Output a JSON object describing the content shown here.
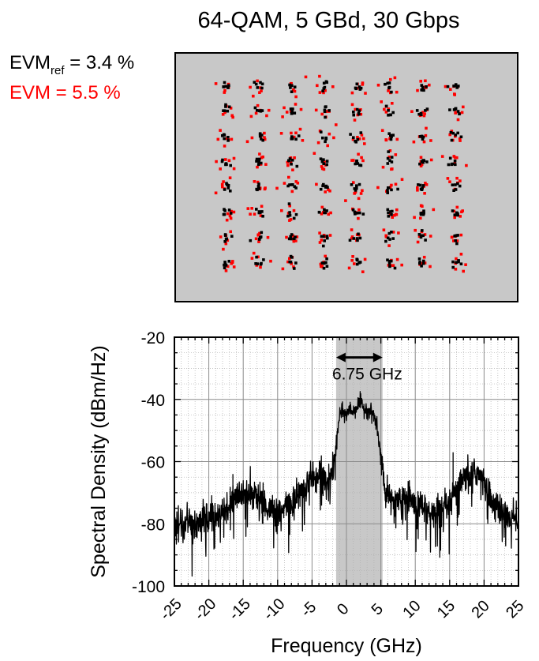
{
  "header": {
    "title": "64-QAM, 5 GBd, 30 Gbps"
  },
  "evm": {
    "ref_label": "EVM",
    "ref_sub": "ref",
    "ref_value": " = 3.4 %",
    "measured": "EVM = 5.5 %",
    "measured_color": "#ff0000",
    "ref_color": "#000000"
  },
  "chart_data": [
    {
      "type": "scatter",
      "title": "64-QAM, 5 GBd, 30 Gbps",
      "grid": false,
      "background": "#c8c8c8",
      "levels": [
        -7,
        -5,
        -3,
        -1,
        1,
        3,
        5,
        7
      ],
      "series": [
        {
          "name": "EVM = 5.5 %",
          "color": "#ff0000",
          "evm_percent": 5.5
        },
        {
          "name": "EVM_ref = 3.4 %",
          "color": "#000000",
          "evm_percent": 3.4
        }
      ]
    },
    {
      "type": "line",
      "xlabel": "Frequency (GHz)",
      "ylabel": "Spectral Density (dBm/Hz)",
      "xlim": [
        -25,
        25
      ],
      "ylim": [
        -100,
        -20
      ],
      "xticks": [
        -25,
        -20,
        -15,
        -10,
        -5,
        0,
        5,
        10,
        15,
        20,
        25
      ],
      "yticks": [
        -100,
        -80,
        -60,
        -40,
        -20
      ],
      "grid": true,
      "band": {
        "x0": -1.5,
        "x1": 5.25,
        "color": "#c8c8c8"
      },
      "annotation": {
        "text": "6.75 GHz",
        "x0": -1.5,
        "x1": 5.25,
        "y": -26.5
      },
      "series": [
        {
          "name": "spectrum",
          "color": "#000000",
          "x": [
            -25,
            -24,
            -23,
            -22,
            -21,
            -20,
            -19,
            -18,
            -17,
            -16,
            -15,
            -14,
            -13,
            -12,
            -11,
            -10,
            -9,
            -8,
            -7,
            -6,
            -5,
            -4,
            -3,
            -2,
            -1.5,
            -1,
            -0.5,
            0,
            0.5,
            1,
            1.5,
            2,
            2.5,
            3,
            3.5,
            4,
            4.5,
            5,
            5.5,
            6,
            7,
            8,
            9,
            10,
            11,
            12,
            13,
            14,
            15,
            16,
            17,
            18,
            19,
            20,
            21,
            22,
            23,
            24,
            25
          ],
          "y": [
            -81,
            -80,
            -79,
            -80,
            -78,
            -78,
            -77,
            -76,
            -74,
            -71,
            -69,
            -70,
            -71,
            -73,
            -76,
            -77,
            -75,
            -73,
            -71,
            -68,
            -65,
            -64,
            -66,
            -65,
            -55,
            -45,
            -44,
            -45,
            -43,
            -44,
            -42,
            -41,
            -43,
            -43,
            -44,
            -45,
            -50,
            -58,
            -68,
            -72,
            -72,
            -73,
            -71,
            -74,
            -74,
            -77,
            -77,
            -76,
            -74,
            -69,
            -66,
            -65,
            -63,
            -67,
            -72,
            -75,
            -77,
            -78,
            -79
          ]
        }
      ]
    }
  ]
}
